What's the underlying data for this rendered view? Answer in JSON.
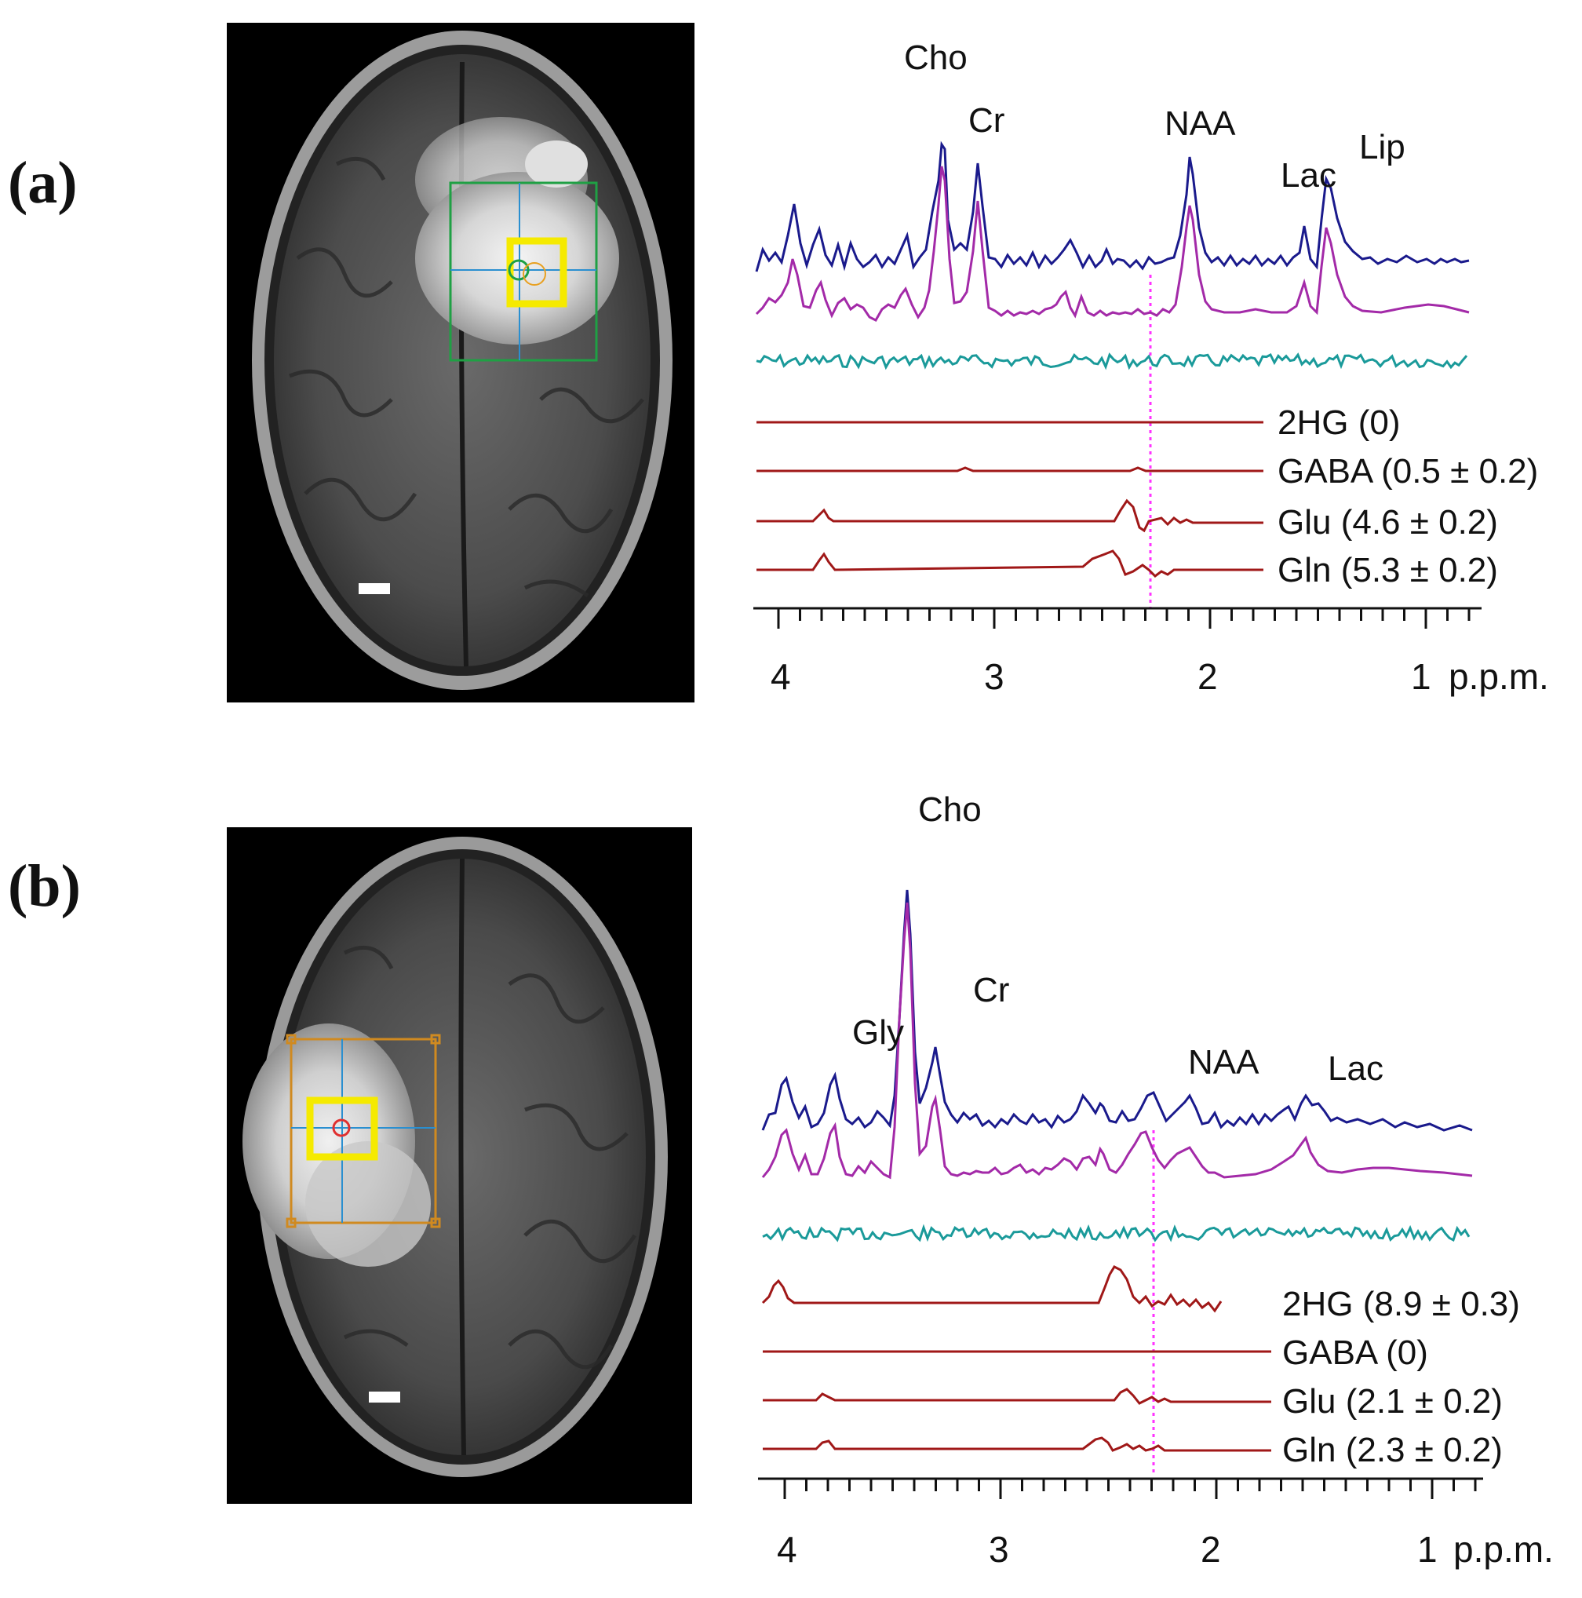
{
  "panels": [
    {
      "label": "(a)",
      "peak_labels": [
        "Cho",
        "Cr",
        "NAA",
        "Lac",
        "Lip"
      ],
      "metabolites": [
        {
          "label": "2HG (0)"
        },
        {
          "label": "GABA (0.5 ± 0.2)"
        },
        {
          "label": "Glu (4.6 ± 0.2)"
        },
        {
          "label": "Gln (5.3 ± 0.2)"
        }
      ],
      "x_ticks": [
        "4",
        "3",
        "2",
        "1"
      ],
      "x_unit": "p.p.m."
    },
    {
      "label": "(b)",
      "peak_labels": [
        "Gly",
        "Cho",
        "Cr",
        "NAA",
        "Lac"
      ],
      "metabolites": [
        {
          "label": "2HG (8.9 ± 0.3)"
        },
        {
          "label": "GABA (0)"
        },
        {
          "label": "Glu (2.1 ± 0.2)"
        },
        {
          "label": "Gln (2.3 ± 0.2)"
        }
      ],
      "x_ticks": [
        "4",
        "3",
        "2",
        "1"
      ],
      "x_unit": "p.p.m."
    }
  ],
  "chart_data": [
    {
      "type": "line",
      "xlabel": "p.p.m.",
      "xlim": [
        4.1,
        0.8
      ],
      "x_reversed": true,
      "marker_ppm": 2.25,
      "series": [
        {
          "name": "",
          "x": [
            4.0,
            3.9,
            3.75,
            3.6,
            3.4,
            3.22,
            3.02,
            2.45,
            2.35,
            2.02,
            1.41,
            1.33,
            1.0
          ],
          "values": [
            0.2,
            0.45,
            0.4,
            0.2,
            0.25,
            1.0,
            0.7,
            0.2,
            0.15,
            0.75,
            0.3,
            0.55,
            0.05
          ]
        },
        {
          "name": "",
          "x": [
            4.0,
            3.9,
            3.75,
            3.6,
            3.4,
            3.22,
            3.02,
            2.45,
            2.35,
            2.02,
            1.41,
            1.33,
            1.0
          ],
          "values": [
            0.2,
            0.4,
            0.35,
            0.2,
            0.2,
            1.0,
            0.8,
            0.2,
            0.15,
            0.8,
            0.3,
            0.7,
            0.05
          ]
        }
      ]
    },
    {
      "type": "line",
      "xlabel": "p.p.m.",
      "xlim": [
        4.1,
        0.8
      ],
      "x_reversed": true,
      "marker_ppm": 2.25,
      "series": [
        {
          "name": "",
          "x": [
            4.0,
            3.9,
            3.75,
            3.55,
            3.21,
            3.02,
            2.25,
            2.02,
            1.35,
            1.28,
            1.0
          ],
          "values": [
            0.2,
            0.3,
            0.2,
            0.45,
            1.0,
            0.45,
            0.2,
            0.2,
            0.15,
            0.15,
            0.05
          ]
        },
        {
          "name": "",
          "x": [
            4.0,
            3.9,
            3.75,
            3.55,
            3.21,
            3.02,
            2.25,
            2.02,
            1.35,
            1.28,
            1.0
          ],
          "values": [
            0.2,
            0.35,
            0.2,
            0.5,
            1.0,
            0.55,
            0.3,
            0.25,
            0.15,
            0.2,
            0.05
          ]
        }
      ]
    }
  ]
}
